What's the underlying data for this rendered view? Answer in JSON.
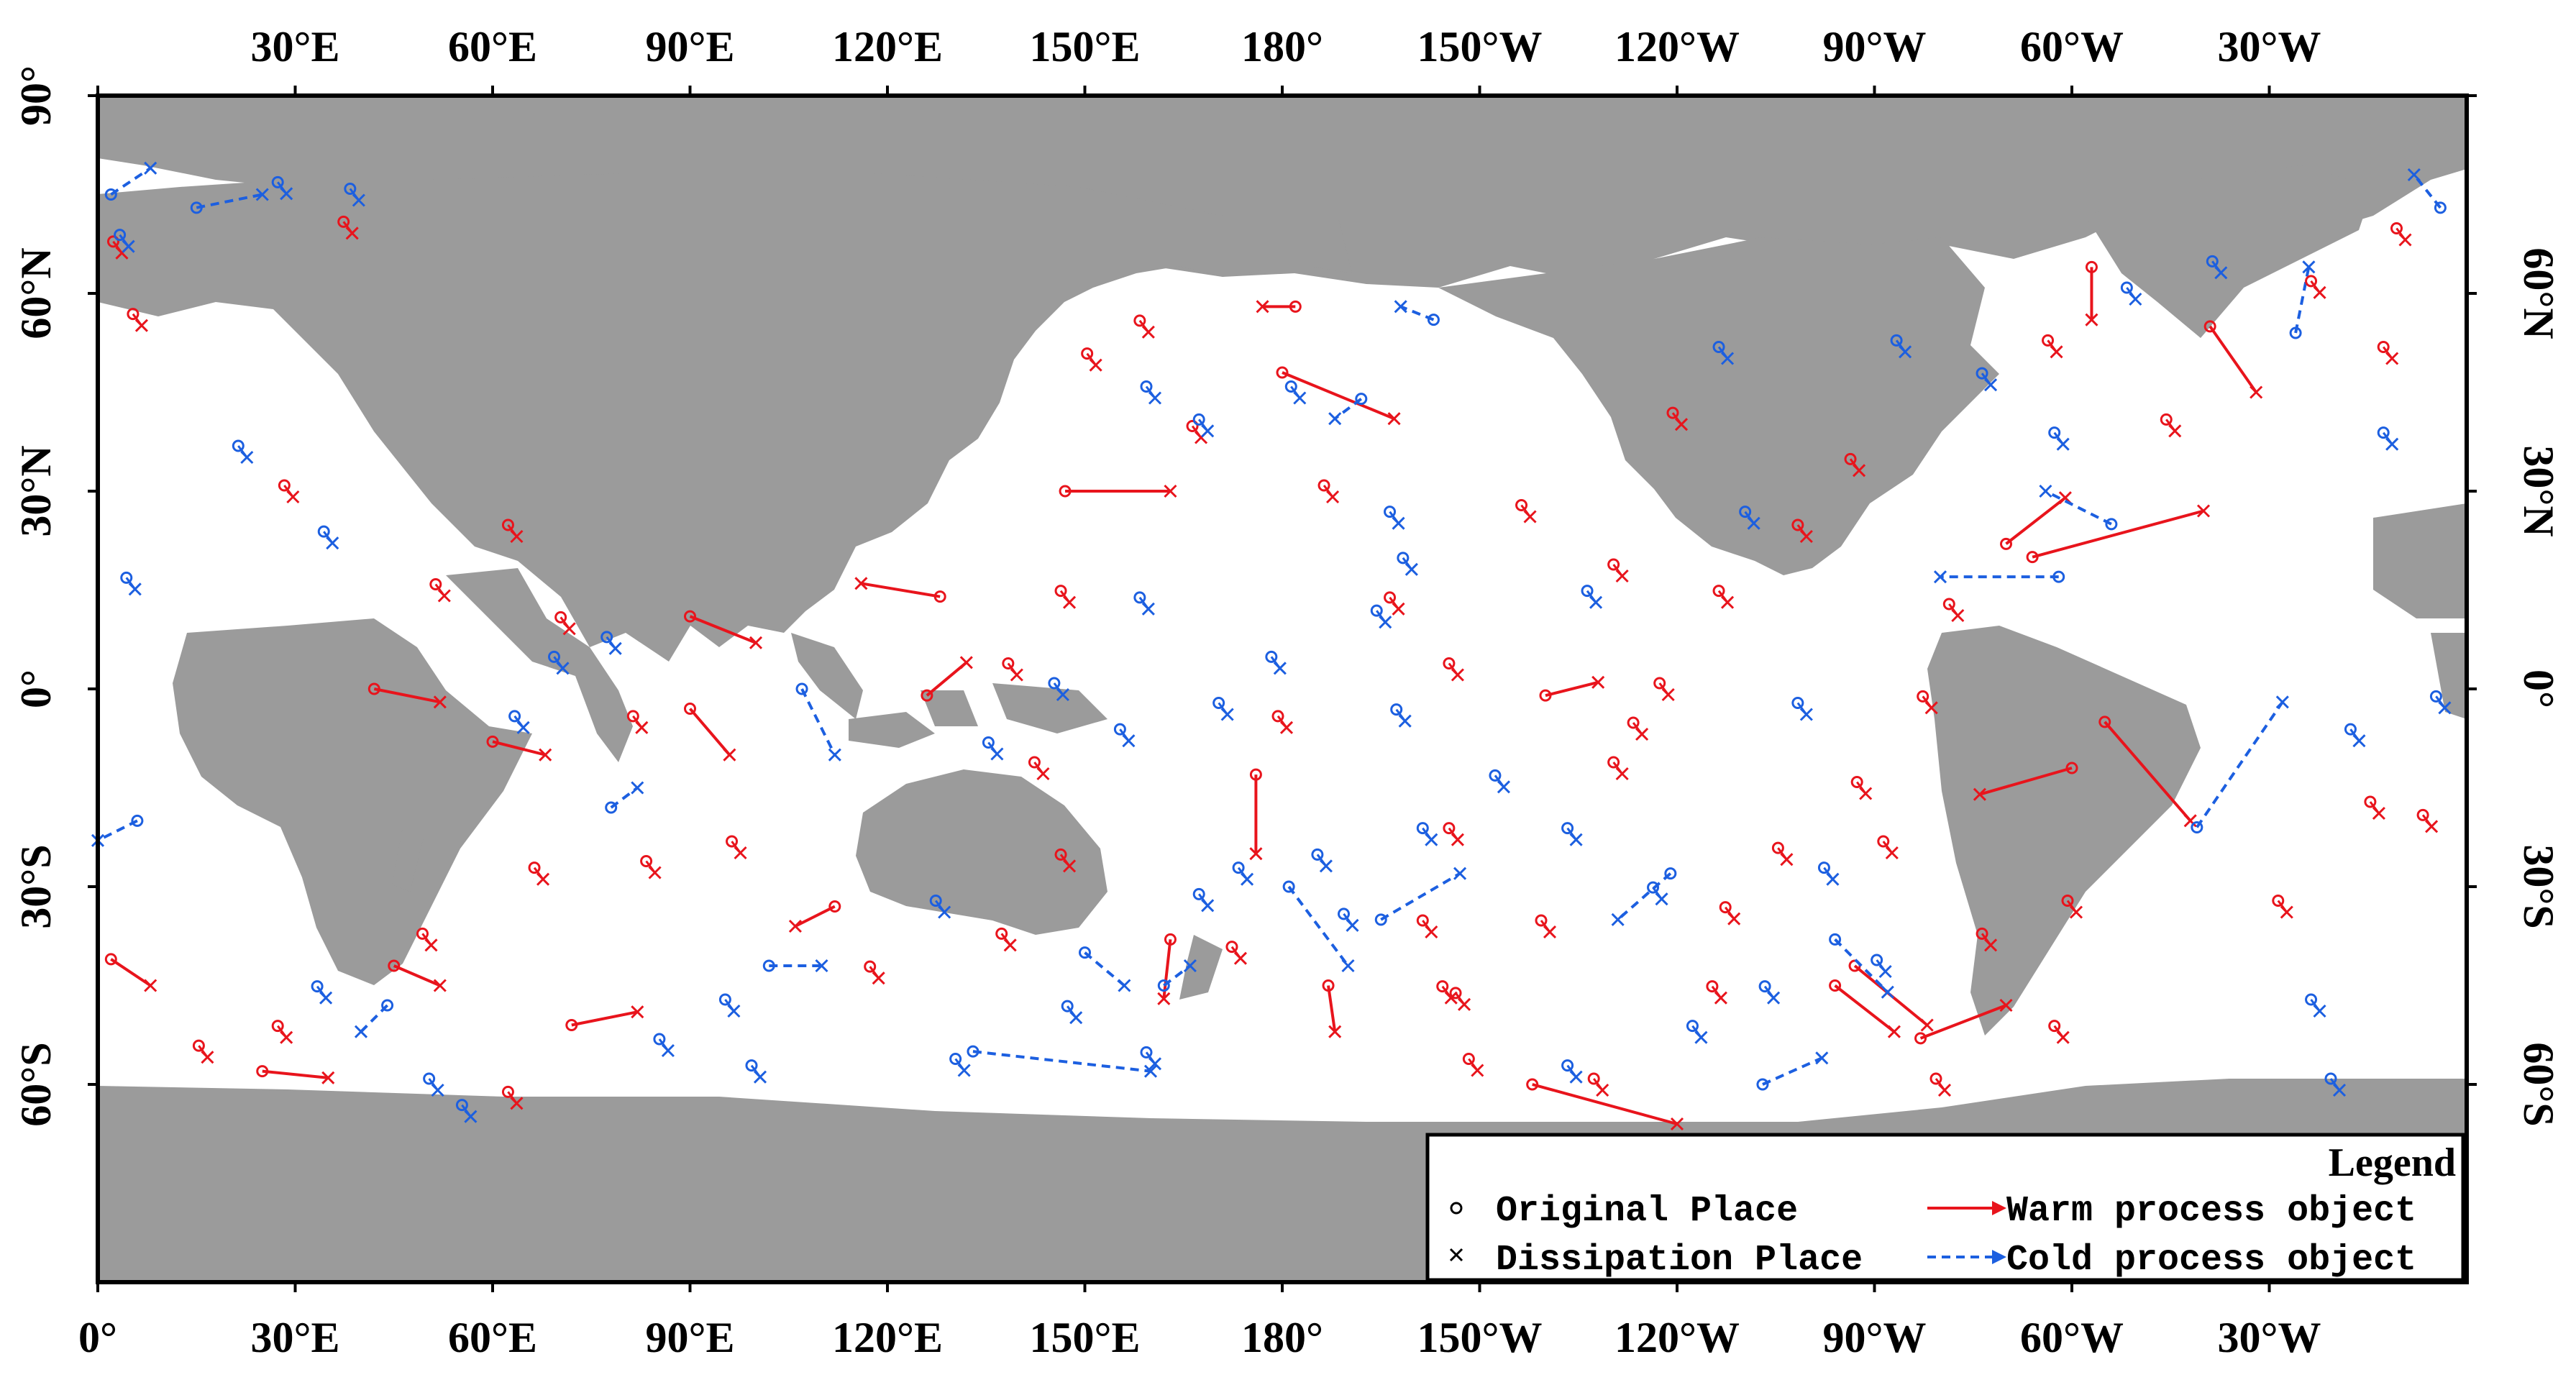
{
  "map": {
    "top_axis_labels": [
      "30°E",
      "60°E",
      "90°E",
      "120°E",
      "150°E",
      "180°",
      "150°W",
      "120°W",
      "90°W",
      "60°W",
      "30°W"
    ],
    "bottom_axis_labels": [
      "0°",
      "30°E",
      "60°E",
      "90°E",
      "120°E",
      "150°E",
      "180°",
      "150°W",
      "120°W",
      "90°W",
      "60°W",
      "30°W"
    ],
    "left_axis_labels": [
      "90°",
      "60°N",
      "30°N",
      "0°",
      "30°S",
      "60°S"
    ],
    "right_axis_labels": [
      "60°N",
      "30°N",
      "0°",
      "30°S",
      "60°S"
    ],
    "colors": {
      "land": "#9b9b9b",
      "ocean": "#ffffff",
      "warm": "#e8141c",
      "cold": "#1c5fe0",
      "frame": "#000000"
    },
    "legend": {
      "title": "Legend",
      "original_place": "Original Place",
      "dissipation_place": "Dissipation Place",
      "warm_label": "Warm process object",
      "cold_label": "Cold process object"
    }
  },
  "chart_data": {
    "type": "scatter",
    "x_range": [
      0,
      360
    ],
    "y_range": [
      -90,
      90
    ],
    "note_units": "longitude east 0-360, latitude",
    "warm_tracks": [
      [
        [
          45,
          -42
        ],
        [
          52,
          -45
        ]
      ],
      [
        [
          2,
          -41
        ],
        [
          8,
          -45
        ]
      ],
      [
        [
          60,
          -8
        ],
        [
          68,
          -10
        ]
      ],
      [
        [
          42,
          0
        ],
        [
          52,
          -2
        ]
      ],
      [
        [
          90,
          11
        ],
        [
          100,
          7
        ]
      ],
      [
        [
          90,
          -3
        ],
        [
          96,
          -10
        ]
      ],
      [
        [
          112,
          -33
        ],
        [
          106,
          -36
        ]
      ],
      [
        [
          126,
          -1
        ],
        [
          132,
          4
        ]
      ],
      [
        [
          147,
          30
        ],
        [
          163,
          30
        ]
      ],
      [
        [
          180,
          48
        ],
        [
          197,
          41
        ]
      ],
      [
        [
          182,
          58
        ],
        [
          177,
          58
        ]
      ],
      [
        [
          220,
          -1
        ],
        [
          228,
          1
        ]
      ],
      [
        [
          218,
          -60
        ],
        [
          240,
          -66
        ]
      ],
      [
        [
          267,
          -42
        ],
        [
          278,
          -51
        ]
      ],
      [
        [
          264,
          -45
        ],
        [
          273,
          -52
        ]
      ],
      [
        [
          300,
          -12
        ],
        [
          286,
          -16
        ]
      ],
      [
        [
          294,
          20
        ],
        [
          320,
          27
        ]
      ],
      [
        [
          290,
          22
        ],
        [
          299,
          29
        ]
      ],
      [
        [
          305,
          -5
        ],
        [
          318,
          -20
        ]
      ],
      [
        [
          321,
          55
        ],
        [
          328,
          45
        ]
      ],
      [
        [
          303,
          64
        ],
        [
          303,
          56
        ]
      ],
      [
        [
          187,
          -45
        ],
        [
          188,
          -52
        ]
      ],
      [
        [
          163,
          -38
        ],
        [
          162,
          -47
        ]
      ],
      [
        [
          25,
          -58
        ],
        [
          35,
          -59
        ]
      ],
      [
        [
          72,
          -51
        ],
        [
          82,
          -49
        ]
      ],
      [
        [
          277,
          -53
        ],
        [
          290,
          -48
        ]
      ],
      [
        [
          128,
          14
        ],
        [
          116,
          16
        ]
      ],
      [
        [
          176,
          -13
        ],
        [
          176,
          -25
        ]
      ]
    ],
    "cold_tracks": [
      [
        [
          6,
          -20
        ],
        [
          0,
          -23
        ]
      ],
      [
        [
          2,
          75
        ],
        [
          8,
          79
        ]
      ],
      [
        [
          15,
          73
        ],
        [
          25,
          75
        ]
      ],
      [
        [
          102,
          -42
        ],
        [
          110,
          -42
        ]
      ],
      [
        [
          133,
          -55
        ],
        [
          160,
          -58
        ]
      ],
      [
        [
          181,
          -30
        ],
        [
          190,
          -42
        ]
      ],
      [
        [
          195,
          -35
        ],
        [
          207,
          -28
        ]
      ],
      [
        [
          203,
          56
        ],
        [
          198,
          58
        ]
      ],
      [
        [
          239,
          -28
        ],
        [
          231,
          -35
        ]
      ],
      [
        [
          253,
          -60
        ],
        [
          262,
          -56
        ]
      ],
      [
        [
          298,
          17
        ],
        [
          280,
          17
        ]
      ],
      [
        [
          319,
          -21
        ],
        [
          332,
          -2
        ]
      ],
      [
        [
          334,
          54
        ],
        [
          336,
          64
        ]
      ],
      [
        [
          356,
          73
        ],
        [
          352,
          78
        ]
      ],
      [
        [
          306,
          25
        ],
        [
          296,
          30
        ]
      ],
      [
        [
          162,
          -45
        ],
        [
          166,
          -42
        ]
      ],
      [
        [
          264,
          -38
        ],
        [
          272,
          -46
        ]
      ],
      [
        [
          107,
          0
        ],
        [
          112,
          -10
        ]
      ],
      [
        [
          44,
          -48
        ],
        [
          40,
          -52
        ]
      ],
      [
        [
          150,
          -40
        ],
        [
          156,
          -45
        ]
      ],
      [
        [
          78,
          -18
        ],
        [
          82,
          -15
        ]
      ],
      [
        [
          192,
          44
        ],
        [
          188,
          41
        ]
      ]
    ],
    "warm_markers": [
      [
        38,
        70
      ],
      [
        3,
        67
      ],
      [
        6,
        56
      ],
      [
        29,
        30
      ],
      [
        63,
        24
      ],
      [
        52,
        15
      ],
      [
        71,
        10
      ],
      [
        82,
        -5
      ],
      [
        67,
        -28
      ],
      [
        50,
        -38
      ],
      [
        16,
        -55
      ],
      [
        28,
        -52
      ],
      [
        63,
        -62
      ],
      [
        84,
        -27
      ],
      [
        97,
        -24
      ],
      [
        118,
        -43
      ],
      [
        138,
        -38
      ],
      [
        147,
        -26
      ],
      [
        173,
        -40
      ],
      [
        202,
        -36
      ],
      [
        207,
        -47
      ],
      [
        234,
        -6
      ],
      [
        247,
        14
      ],
      [
        238,
        0
      ],
      [
        206,
        -22
      ],
      [
        206,
        3
      ],
      [
        248,
        -34
      ],
      [
        256,
        -25
      ],
      [
        217,
        27
      ],
      [
        231,
        18
      ],
      [
        240,
        41
      ],
      [
        259,
        24
      ],
      [
        282,
        12
      ],
      [
        287,
        -38
      ],
      [
        272,
        -24
      ],
      [
        332,
        -33
      ],
      [
        346,
        -18
      ],
      [
        354,
        -20
      ],
      [
        348,
        51
      ],
      [
        350,
        69
      ],
      [
        337,
        61
      ],
      [
        315,
        40
      ],
      [
        297,
        52
      ],
      [
        267,
        34
      ],
      [
        246,
        -46
      ],
      [
        278,
        -2
      ],
      [
        151,
        50
      ],
      [
        159,
        55
      ],
      [
        167,
        39
      ],
      [
        187,
        30
      ],
      [
        197,
        13
      ],
      [
        180,
        -5
      ],
      [
        205,
        -46
      ],
      [
        220,
        -36
      ],
      [
        280,
        -60
      ],
      [
        298,
        -52
      ],
      [
        147,
        14
      ],
      [
        139,
        3
      ],
      [
        143,
        -12
      ],
      [
        228,
        -60
      ],
      [
        231,
        -12
      ],
      [
        209,
        -57
      ],
      [
        268,
        -15
      ],
      [
        300,
        -33
      ]
    ],
    "cold_markers": [
      [
        5,
        16
      ],
      [
        35,
        23
      ],
      [
        22,
        36
      ],
      [
        4,
        68
      ],
      [
        28,
        76
      ],
      [
        39,
        75
      ],
      [
        64,
        -5
      ],
      [
        70,
        4
      ],
      [
        78,
        7
      ],
      [
        51,
        -60
      ],
      [
        34,
        -46
      ],
      [
        56,
        -64
      ],
      [
        86,
        -54
      ],
      [
        96,
        -48
      ],
      [
        100,
        -58
      ],
      [
        128,
        -33
      ],
      [
        131,
        -57
      ],
      [
        148,
        -49
      ],
      [
        168,
        -32
      ],
      [
        174,
        -28
      ],
      [
        186,
        -26
      ],
      [
        198,
        -4
      ],
      [
        202,
        -22
      ],
      [
        171,
        -3
      ],
      [
        159,
        13
      ],
      [
        156,
        -7
      ],
      [
        146,
        0
      ],
      [
        136,
        -9
      ],
      [
        179,
        4
      ],
      [
        195,
        11
      ],
      [
        197,
        26
      ],
      [
        199,
        19
      ],
      [
        213,
        -14
      ],
      [
        224,
        -22
      ],
      [
        227,
        14
      ],
      [
        251,
        26
      ],
      [
        259,
        -3
      ],
      [
        263,
        -28
      ],
      [
        271,
        -42
      ],
      [
        274,
        52
      ],
      [
        287,
        47
      ],
      [
        298,
        38
      ],
      [
        309,
        60
      ],
      [
        322,
        64
      ],
      [
        343,
        -7
      ],
      [
        348,
        38
      ],
      [
        356,
        -2
      ],
      [
        337,
        -48
      ],
      [
        340,
        -60
      ],
      [
        247,
        51
      ],
      [
        237,
        -31
      ],
      [
        160,
        45
      ],
      [
        168,
        40
      ],
      [
        182,
        45
      ],
      [
        160,
        -56
      ],
      [
        243,
        -52
      ],
      [
        254,
        -46
      ],
      [
        224,
        -58
      ],
      [
        190,
        -35
      ]
    ]
  }
}
